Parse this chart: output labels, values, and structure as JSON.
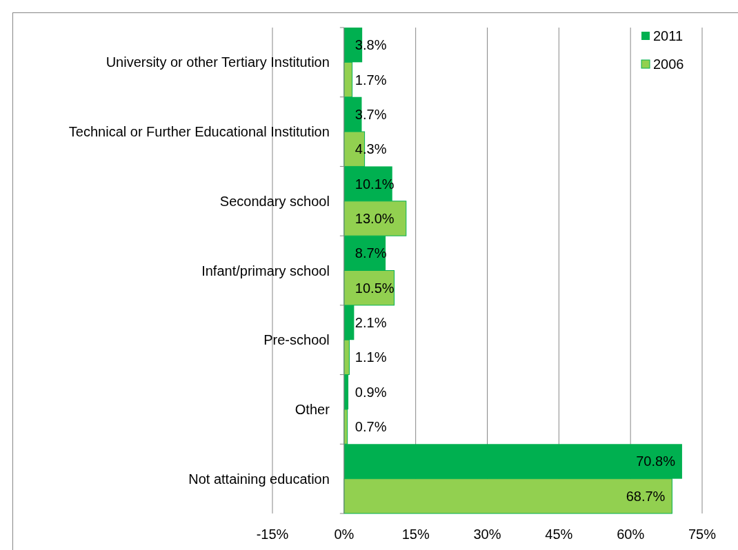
{
  "chart_data": {
    "type": "bar",
    "orientation": "horizontal",
    "categories": [
      "University or other Tertiary Institution",
      "Technical or Further Educational Institution",
      "Secondary school",
      "Infant/primary school",
      "Pre-school",
      "Other",
      "Not attaining education"
    ],
    "series": [
      {
        "name": "2011",
        "color": "#00b050",
        "values": [
          3.8,
          3.7,
          10.1,
          8.7,
          2.1,
          0.9,
          70.8
        ],
        "value_labels": [
          "3.8%",
          "3.7%",
          "10.1%",
          "8.7%",
          "2.1%",
          "0.9%",
          "70.8%"
        ]
      },
      {
        "name": "2006",
        "color": "#92d050",
        "values": [
          1.7,
          4.3,
          13.0,
          10.5,
          1.1,
          0.7,
          68.7
        ],
        "value_labels": [
          "1.7%",
          "4.3%",
          "13.0%",
          "10.5%",
          "1.1%",
          "0.7%",
          "68.7%"
        ]
      }
    ],
    "xlim": [
      -15,
      75
    ],
    "xticks": [
      {
        "value": -15,
        "label": "-15%"
      },
      {
        "value": 0,
        "label": "0%"
      },
      {
        "value": 15,
        "label": "15%"
      },
      {
        "value": 30,
        "label": "30%"
      },
      {
        "value": 45,
        "label": "45%"
      },
      {
        "value": 60,
        "label": "60%"
      },
      {
        "value": 75,
        "label": "75%"
      }
    ],
    "grid": "x",
    "legend": "top right"
  }
}
